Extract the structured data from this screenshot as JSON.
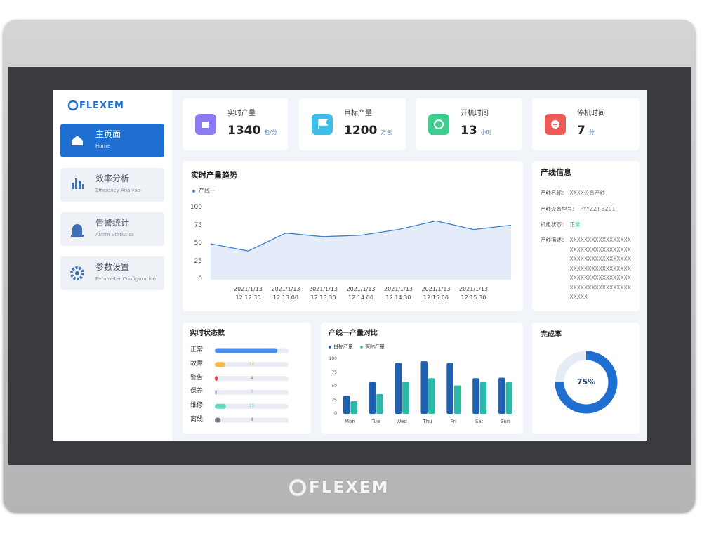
{
  "brand": "FLEXEM",
  "bezel_brand": "FLEXEM",
  "nav": [
    {
      "title": "主页面",
      "subtitle": "Home"
    },
    {
      "title": "效率分析",
      "subtitle": "Efficiency Analysis"
    },
    {
      "title": "告警统计",
      "subtitle": "Alarm Statistics"
    },
    {
      "title": "参数设置",
      "subtitle": "Parameter Configuration"
    }
  ],
  "kpis": [
    {
      "label": "实时产量",
      "value": 1340,
      "unit": "包/分"
    },
    {
      "label": "目标产量",
      "value": 1200,
      "unit": "万包"
    },
    {
      "label": "开机时间",
      "value": 13,
      "unit": "小时"
    },
    {
      "label": "停机时间",
      "value": 7,
      "unit": "分"
    }
  ],
  "line_info": {
    "title": "产线信息",
    "fields": [
      {
        "label": "产线名称：",
        "value": "XXXX设备产线"
      },
      {
        "label": "产线设备型号：",
        "value": "FYYZZT-BZ01"
      },
      {
        "label": "机组状态：",
        "value": "正常"
      },
      {
        "label": "产线描述：",
        "value": "XXXXXXXXXXXXXXXXXXXXXXXXXXXXXXXXXXXXXXXXXXXXXXXXXXXXXXXXXXXXXXXXXXXXXXXXXXXXXXXXXXXXXXXXXXXXXXXXXXXXXXXXXXX"
      }
    ]
  },
  "chart_data": [
    {
      "type": "line",
      "title": "实时产量趋势",
      "categories": [
        null,
        "2021/1/13 12:12:30",
        "2021/1/13 12:13:00",
        "2021/1/13 12:13:30",
        "2021/1/13 12:14:00",
        "2021/1/13 12:14:30",
        "2021/1/13 12:15:00",
        "2021/1/13 12:15:30",
        null
      ],
      "series": [
        {
          "name": "产线一",
          "color": "#3f7fd0",
          "values": [
            50,
            40,
            65,
            60,
            62,
            70,
            82,
            70,
            76
          ]
        }
      ],
      "area_color": "#e3ecf8",
      "ylim": [
        0,
        100
      ],
      "yticks": [
        0,
        25,
        50,
        75,
        100
      ]
    },
    {
      "type": "hbar",
      "title": "实时状态数",
      "categories": [
        "正常",
        "故障",
        "警告",
        "保养",
        "维修",
        "离线"
      ],
      "values": [
        85,
        14,
        4,
        3,
        15,
        8
      ],
      "colors": [
        "#4a8ff0",
        "#f7b84b",
        "#e84a4a",
        "#aab8d8",
        "#5fd9c4",
        "#777a80"
      ],
      "xlim": [
        0,
        100
      ]
    },
    {
      "type": "bar",
      "title": "产线一产量对比",
      "categories": [
        "Mon",
        "Tue",
        "Wed",
        "Thu",
        "Fri",
        "Sat",
        "Sun"
      ],
      "series": [
        {
          "name": "目标产量",
          "color": "#1f5fb0",
          "values": [
            33,
            58,
            93,
            96,
            93,
            65,
            66
          ]
        },
        {
          "name": "实际产量",
          "color": "#2cb8a6",
          "values": [
            23,
            36,
            59,
            65,
            52,
            58,
            58
          ]
        }
      ],
      "ylim": [
        0,
        100
      ],
      "yticks": [
        0,
        25,
        50,
        75,
        100
      ],
      "legend": "top-left"
    },
    {
      "type": "donut",
      "title": "完成率",
      "values": [
        75
      ],
      "value_labels": [
        "75%"
      ],
      "color": "#1f6fd1",
      "track_color": "#e6ecf5"
    }
  ]
}
